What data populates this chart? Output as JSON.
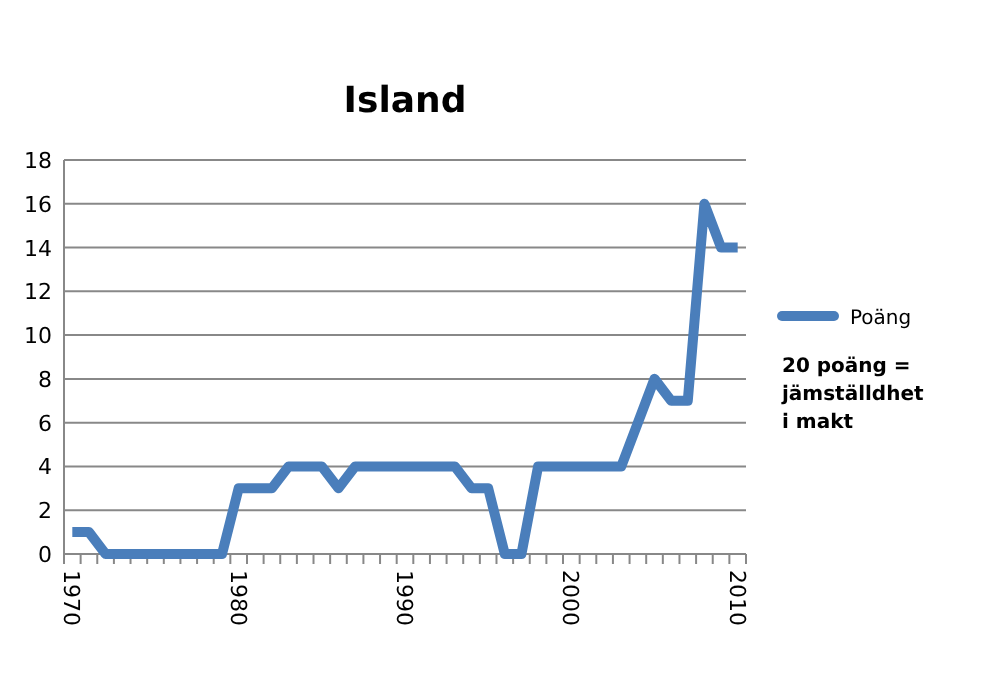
{
  "chart_data": {
    "type": "line",
    "title": "Island",
    "categories": [
      "1970",
      null,
      null,
      null,
      null,
      null,
      null,
      null,
      null,
      null,
      "1980",
      null,
      null,
      null,
      null,
      null,
      null,
      null,
      null,
      null,
      "1990",
      null,
      null,
      null,
      null,
      null,
      null,
      null,
      null,
      null,
      "2000",
      null,
      null,
      null,
      null,
      null,
      null,
      null,
      null,
      null,
      "2010"
    ],
    "series": [
      {
        "name": "Poäng",
        "color": "#4a7ebb",
        "values": [
          1,
          1,
          0,
          0,
          0,
          0,
          0,
          0,
          0,
          0,
          3,
          3,
          3,
          4,
          4,
          4,
          3,
          4,
          4,
          4,
          4,
          4,
          4,
          4,
          3,
          3,
          0,
          0,
          4,
          4,
          4,
          4,
          4,
          4,
          6,
          8,
          7,
          7,
          16,
          14,
          14
        ]
      }
    ],
    "ylim": [
      0,
      18
    ],
    "yticks": [
      0,
      2,
      4,
      6,
      8,
      10,
      12,
      14,
      16,
      18
    ],
    "grid": "y",
    "legend": "right",
    "marker": "none",
    "line_style": "solid",
    "annotations": [
      "20 poäng = jämställdhet i makt"
    ]
  }
}
